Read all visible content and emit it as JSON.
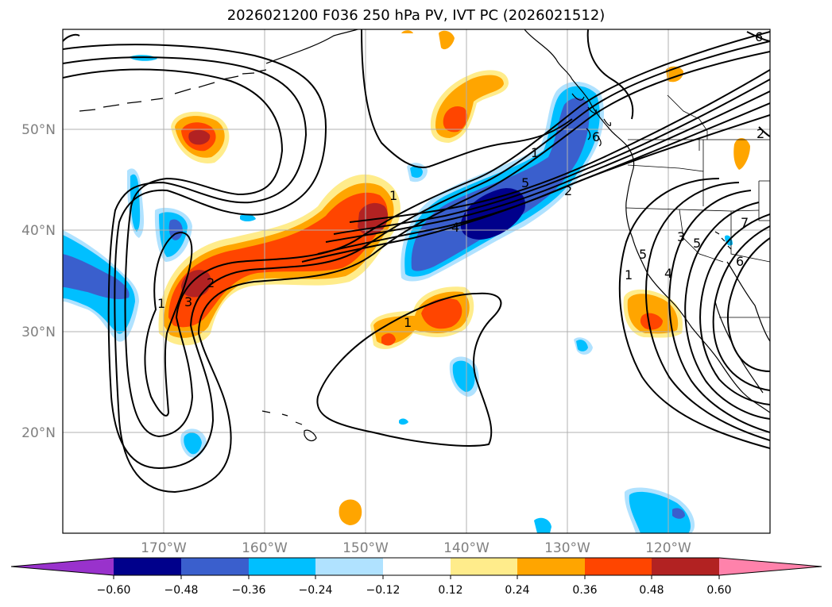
{
  "title": "2026021200 F036 250 hPa PV, IVT PC (2026021512)",
  "longitude_labels": [
    "170°W",
    "160°W",
    "150°W",
    "140°W",
    "130°W",
    "120°W"
  ],
  "latitude_labels": [
    "50°N",
    "40°N",
    "30°N",
    "20°N"
  ],
  "colorbar": {
    "tick_labels": [
      "−0.60",
      "−0.48",
      "−0.36",
      "−0.24",
      "−0.12",
      "0.12",
      "0.24",
      "0.36",
      "0.48",
      "0.60"
    ],
    "colors": [
      "#9932cc",
      "#00008b",
      "#3a5fcd",
      "#00bfff",
      "#b0e2ff",
      "#ffffff",
      "#ffec8b",
      "#ffa500",
      "#ff4500",
      "#b22222",
      "#ff82ab"
    ]
  },
  "shading_colors": {
    "neg_strong": "#00008b",
    "neg_mid": "#3a5fcd",
    "neg_weak": "#00bfff",
    "neg_faint": "#b0e2ff",
    "pos_faint": "#ffec8b",
    "pos_weak": "#ffa500",
    "pos_mid": "#ff4500",
    "pos_strong": "#b22222"
  },
  "contour_labels": [
    "1",
    "1",
    "2",
    "2",
    "3",
    "4",
    "5",
    "5",
    "6",
    "6",
    "1",
    "4",
    "3",
    "2",
    "1",
    "5",
    "6",
    "7",
    "1"
  ]
}
